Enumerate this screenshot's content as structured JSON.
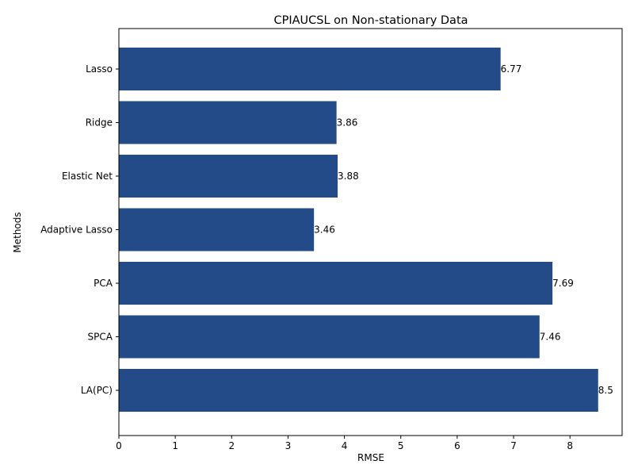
{
  "chart_data": {
    "type": "bar",
    "orientation": "horizontal",
    "title": "CPIAUCSL on Non-stationary Data",
    "xlabel": "RMSE",
    "ylabel": "Methods",
    "categories": [
      "Lasso",
      "Ridge",
      "Elastic Net",
      "Adaptive Lasso",
      "PCA",
      "SPCA",
      "LA(PC)"
    ],
    "values": [
      6.77,
      3.86,
      3.88,
      3.46,
      7.69,
      7.46,
      8.5
    ],
    "value_labels": [
      "6.77",
      "3.86",
      "3.88",
      "3.46",
      "7.69",
      "7.46",
      "8.5"
    ],
    "xlim": [
      0,
      8.925
    ],
    "xticks": [
      0,
      1,
      2,
      3,
      4,
      5,
      6,
      7,
      8
    ],
    "bar_color": "#224b87",
    "grid": false,
    "legend": "none"
  }
}
